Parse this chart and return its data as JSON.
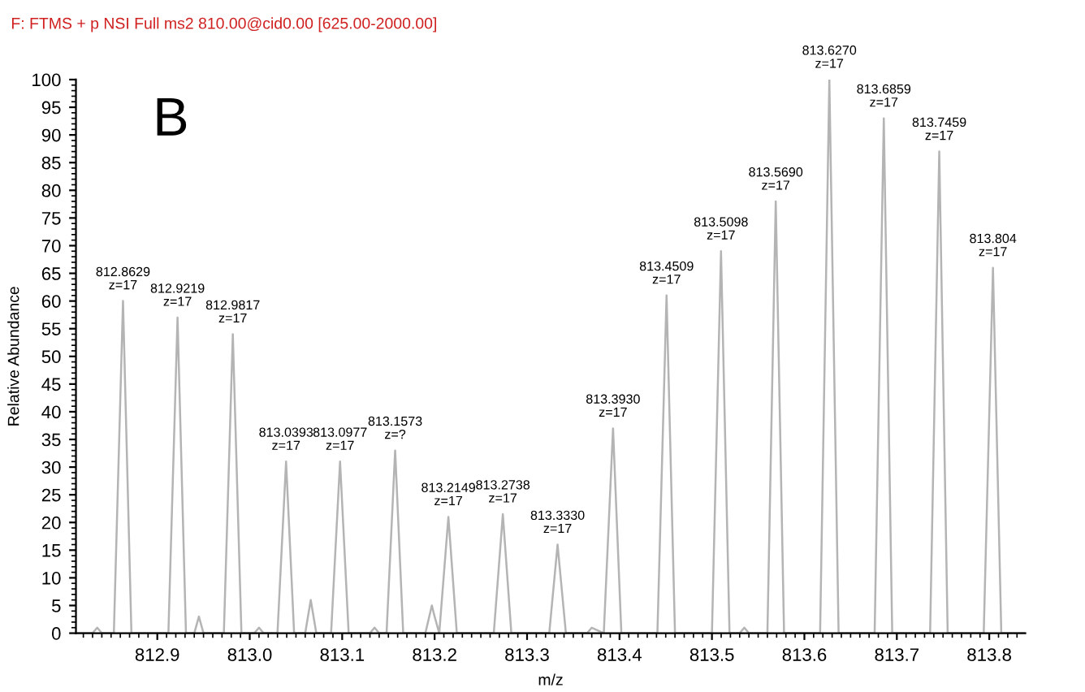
{
  "chart_data": {
    "type": "line",
    "title": "F: FTMS + p NSI Full ms2 810.00@cid0.00 [625.00-2000.00]",
    "xlabel": "m/z",
    "ylabel": "Relative Abundance",
    "xlim": [
      812.812,
      813.839
    ],
    "ylim": [
      0,
      100
    ],
    "xticks": [
      812.9,
      {
        "value": 813.0,
        "label": "813.0"
      },
      813.1,
      813.2,
      813.3,
      813.4,
      813.5,
      813.6,
      813.7,
      813.8
    ],
    "yticks": [
      0,
      5,
      10,
      15,
      20,
      25,
      30,
      35,
      40,
      45,
      50,
      55,
      60,
      65,
      70,
      75,
      80,
      85,
      90,
      95,
      100
    ],
    "grid": false,
    "legend": false,
    "marker": "none",
    "line_style": "solid",
    "series": [
      {
        "color": "#b4b4b4",
        "x": [
          812.812,
          812.83,
          812.835,
          812.84,
          812.853,
          812.8629,
          812.872,
          812.9,
          812.912,
          812.9219,
          812.931,
          812.94,
          812.945,
          812.95,
          812.972,
          812.9817,
          812.991,
          813.005,
          813.01,
          813.015,
          813.03,
          813.0393,
          813.048,
          813.06,
          813.066,
          813.072,
          813.088,
          813.0977,
          813.107,
          813.13,
          813.135,
          813.14,
          813.148,
          813.1573,
          813.166,
          813.19,
          813.197,
          813.2,
          813.205,
          813.2149,
          813.224,
          813.264,
          813.2738,
          813.283,
          813.324,
          813.333,
          813.342,
          813.365,
          813.37,
          813.383,
          813.393,
          813.402,
          813.441,
          813.4509,
          813.46,
          813.5,
          813.5098,
          813.519,
          813.53,
          813.535,
          813.54,
          813.56,
          813.569,
          813.578,
          813.617,
          813.627,
          813.637,
          813.676,
          813.6859,
          813.695,
          813.736,
          813.7459,
          813.755,
          813.794,
          813.804,
          813.813,
          813.839
        ],
        "values": [
          0,
          0,
          1,
          0,
          0,
          60,
          0,
          0,
          0,
          57,
          0,
          0,
          3,
          0,
          0,
          54,
          0,
          0,
          1,
          0,
          0,
          31,
          0,
          0,
          6,
          0,
          0,
          31,
          0,
          0,
          1,
          0,
          0,
          33,
          0,
          0,
          5,
          3,
          0,
          21,
          0,
          0,
          21.5,
          0,
          0,
          16,
          0,
          0,
          1,
          0,
          37,
          0,
          0,
          61,
          0,
          0,
          69,
          0,
          0,
          1,
          0,
          0,
          78,
          0,
          0,
          100,
          0,
          0,
          93,
          0,
          0,
          87,
          0,
          0,
          66,
          0,
          0
        ]
      }
    ],
    "annotations": [
      {
        "text": "812.8629\nz=17",
        "x": 812.8629,
        "y": 60
      },
      {
        "text": "812.9219\nz=17",
        "x": 812.9219,
        "y": 57
      },
      {
        "text": "812.9817\nz=17",
        "x": 812.9817,
        "y": 54
      },
      {
        "text": "813.0393\nz=17",
        "x": 813.0393,
        "y": 31
      },
      {
        "text": "813.0977\nz=17",
        "x": 813.0977,
        "y": 31
      },
      {
        "text": "813.1573\nz=?",
        "x": 813.1573,
        "y": 33
      },
      {
        "text": "813.2149\nz=17",
        "x": 813.2149,
        "y": 21
      },
      {
        "text": "813.2738\nz=17",
        "x": 813.2738,
        "y": 21.5
      },
      {
        "text": "813.3330\nz=17",
        "x": 813.333,
        "y": 16
      },
      {
        "text": "813.3930\nz=17",
        "x": 813.393,
        "y": 37
      },
      {
        "text": "813.4509\nz=17",
        "x": 813.4509,
        "y": 61
      },
      {
        "text": "813.5098\nz=17",
        "x": 813.5098,
        "y": 69
      },
      {
        "text": "813.5690\nz=17",
        "x": 813.569,
        "y": 78
      },
      {
        "text": "813.6270\nz=17",
        "x": 813.627,
        "y": 100
      },
      {
        "text": "813.6859\nz=17",
        "x": 813.6859,
        "y": 93
      },
      {
        "text": "813.7459\nz=17",
        "x": 813.7459,
        "y": 87
      },
      {
        "text": "813.804\nz=17",
        "x": 813.804,
        "y": 66
      },
      "B"
    ]
  }
}
